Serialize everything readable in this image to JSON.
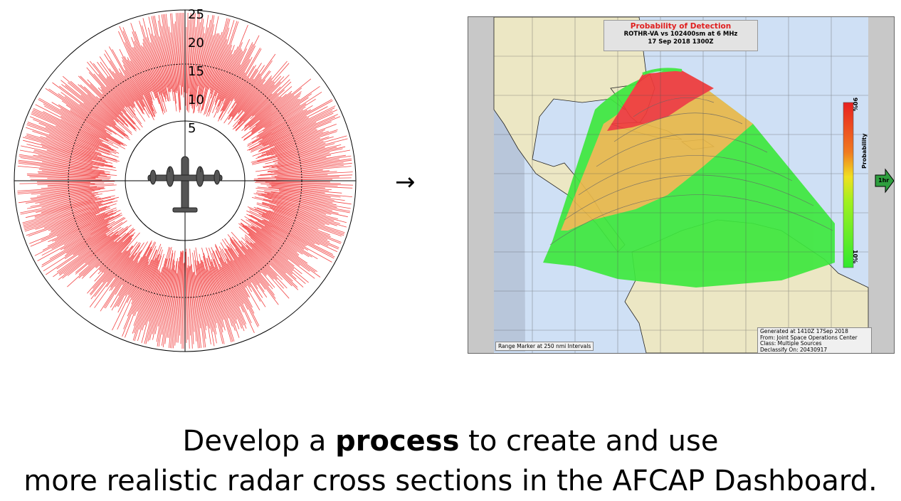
{
  "polar": {
    "ring_labels": [
      "5",
      "10",
      "15",
      "20",
      "25"
    ],
    "plot_color": "#f24646",
    "icon": "aircraft-top-view-icon"
  },
  "arrow_symbol": "→",
  "map": {
    "title": "Probability of Detection",
    "subtitle": "ROTHR-VA vs 102400sm at 6 MHz",
    "date": "17 Sep 2018  1300Z",
    "range_marker": "Range Marker at 250 nmi Intervals",
    "footer": {
      "generated": "Generated at 1410Z 17Sep 2018",
      "from": "From: Joint Space Operations Center",
      "class": "Class: Multiple Sources",
      "declassify": "Declassify On: 20430917"
    },
    "scale": {
      "label": "Probability",
      "top": "90%",
      "bottom": "10%"
    },
    "next_button": "1hr",
    "colors": {
      "high": "#ef3a3a",
      "mid": "#e8b84a",
      "low": "#3ee83e",
      "ocean": "#cfe0f5",
      "land": "#ece7c4"
    }
  },
  "caption": {
    "line1_pre": "Develop a ",
    "line1_bold": "process",
    "line1_post": " to create and use",
    "line2": "more realistic radar cross sections in the AFCAP Dashboard."
  }
}
